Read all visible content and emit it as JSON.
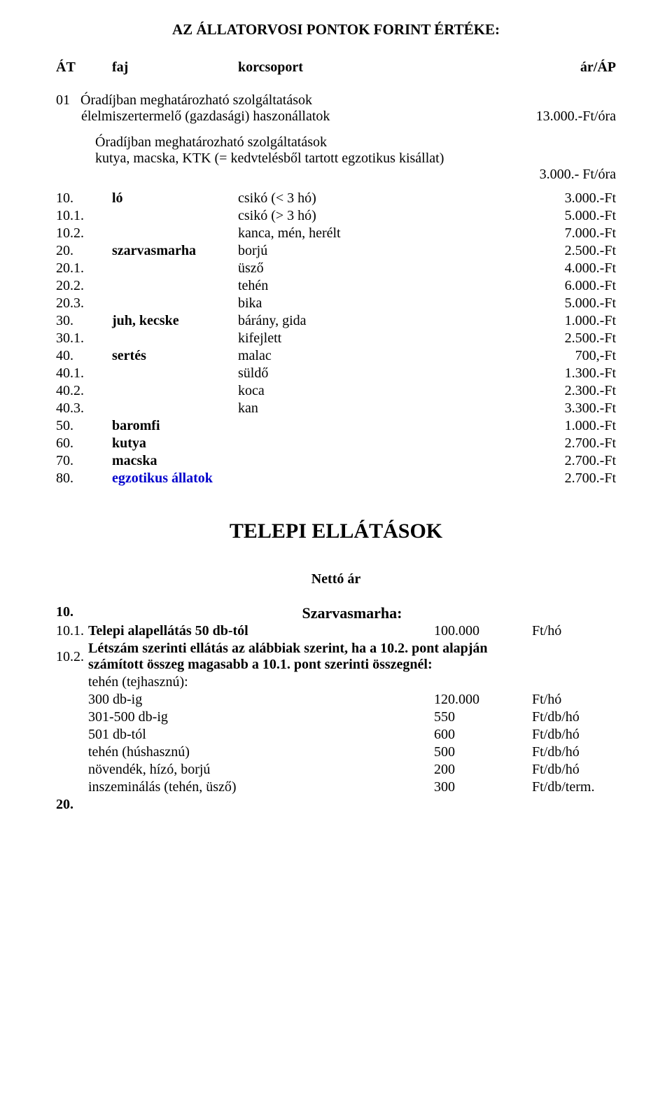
{
  "title": "AZ ÁLLATORVOSI PONTOK FORINT ÉRTÉKE:",
  "header": {
    "c1": "ÁT",
    "c2": "faj",
    "c3": "korcsoport",
    "c4": "ár/ÁP"
  },
  "intro": {
    "code": "01",
    "line1": "Óradíjban meghatározható szolgáltatások",
    "line2": "élelmiszertermelő (gazdasági) haszonállatok",
    "price": "13.000.-Ft/óra"
  },
  "sub": {
    "line1": "Óradíjban meghatározható szolgáltatások",
    "line2": "kutya, macska, KTK (= kedvtelésből tartott egzotikus kisállat)",
    "price": "3.000.- Ft/óra"
  },
  "rows": [
    {
      "code": "10.",
      "faj": "ló",
      "fajBold": true,
      "kor": "csikó (< 3 hó)",
      "price": "3.000.-Ft"
    },
    {
      "code": "10.1.",
      "faj": "",
      "kor": "csikó (> 3 hó)",
      "price": "5.000.-Ft"
    },
    {
      "code": "10.2.",
      "faj": "",
      "kor": "kanca, mén, herélt",
      "price": "7.000.-Ft"
    },
    {
      "code": "20.",
      "faj": "szarvasmarha",
      "fajBold": true,
      "kor": "borjú",
      "price": "2.500.-Ft"
    },
    {
      "code": "20.1.",
      "faj": "",
      "kor": "üsző",
      "price": "4.000.-Ft"
    },
    {
      "code": "20.2.",
      "faj": "",
      "kor": "tehén",
      "price": "6.000.-Ft"
    },
    {
      "code": "20.3.",
      "faj": "",
      "kor": "bika",
      "price": "5.000.-Ft"
    },
    {
      "code": "30.",
      "faj": "juh, kecske",
      "fajBold": true,
      "kor": "bárány, gida",
      "price": "1.000.-Ft"
    },
    {
      "code": "30.1.",
      "faj": "",
      "kor": "kifejlett",
      "price": "2.500.-Ft"
    },
    {
      "code": "40.",
      "faj": "sertés",
      "fajBold": true,
      "kor": "malac",
      "price": "700,-Ft"
    },
    {
      "code": "40.1.",
      "faj": "",
      "kor": "süldő",
      "price": "1.300.-Ft"
    },
    {
      "code": "40.2.",
      "faj": "",
      "kor": "koca",
      "price": "2.300.-Ft"
    },
    {
      "code": "40.3.",
      "faj": "",
      "kor": "kan",
      "price": "3.300.-Ft"
    },
    {
      "code": "50.",
      "faj": "baromfi",
      "fajBold": true,
      "kor": "",
      "price": "1.000.-Ft"
    },
    {
      "code": "60.",
      "faj": "kutya",
      "fajBold": true,
      "kor": "",
      "price": "2.700.-Ft"
    },
    {
      "code": "70.",
      "faj": "macska",
      "fajBold": true,
      "kor": "",
      "price": "2.700.-Ft"
    },
    {
      "code": "80.",
      "faj": "egzotikus állatok",
      "fajBold": true,
      "fajLink": true,
      "kor": "",
      "price": "2.700.-Ft"
    }
  ],
  "section2": {
    "title": "TELEPI ELLÁTÁSOK",
    "netto": "Nettó ár",
    "sz_code": "10.",
    "sz_title": "Szarvasmarha:",
    "row1_code": "10.1.",
    "row1_label": "Telepi alapellátás 50 db-tól",
    "row1_num": "100.000",
    "row1_unit": "Ft/hó",
    "row2_code": "10.2.",
    "row2_l1": "Létszám szerinti ellátás az alábbiak szerint, ha a 10.2. pont alapján",
    "row2_l2": "számított összeg magasabb a 10.1. pont szerinti összegnél:",
    "tejhasznu": "tehén (tejhasznú):",
    "r_300": {
      "label": "300 db-ig",
      "num": "120.000",
      "unit": "Ft/hó"
    },
    "r_301_500": {
      "label": "301-500 db-ig",
      "num": "550",
      "unit": "Ft/db/hó"
    },
    "r_501": {
      "label": "501 db-tól",
      "num": "600",
      "unit": "Ft/db/hó"
    },
    "hushasznu": {
      "label": "tehén (húshasznú)",
      "num": "500",
      "unit": "Ft/db/hó"
    },
    "novendek": {
      "label": "növendék, hízó, borjú",
      "num": "200",
      "unit": "Ft/db/hó"
    },
    "inszem": {
      "label": "inszeminálás (tehén, üsző)",
      "num": "300",
      "unit": "Ft/db/term."
    },
    "code20": "20."
  }
}
